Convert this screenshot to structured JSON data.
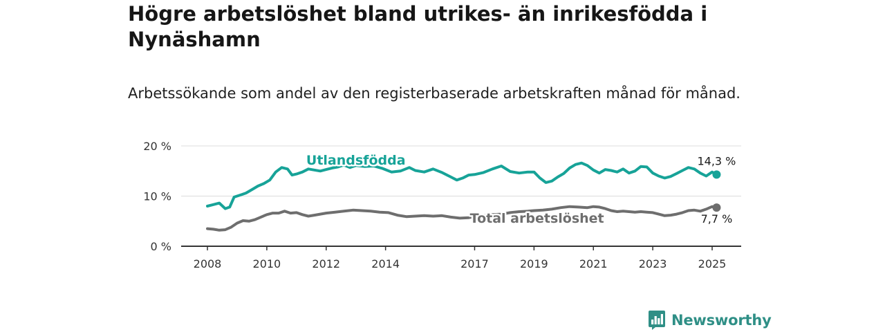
{
  "header": {
    "title": "Högre arbetslöshet bland utrikes- än inrikesfödda i Nynäshamn",
    "subtitle": "Arbetssökande som andel av den registerbaserade arbetskraften månad för månad."
  },
  "brand": {
    "name": "Newsworthy",
    "color": "#2f8f86"
  },
  "chart_data": {
    "type": "line",
    "title": "Högre arbetslöshet bland utrikes- än inrikesfödda i Nynäshamn",
    "subtitle": "Arbetssökande som andel av den registerbaserade arbetskraften månad för månad.",
    "xlim": [
      2008,
      2025.5
    ],
    "ylim": [
      0,
      20
    ],
    "y_ticks": [
      0,
      10,
      20
    ],
    "y_tick_labels": [
      "0 %",
      "10 %",
      "20 %"
    ],
    "x_ticks": [
      2008,
      2010,
      2012,
      2014,
      2017,
      2019,
      2021,
      2023,
      2025
    ],
    "x_tick_labels": [
      "2008",
      "2010",
      "2012",
      "2014",
      "2017",
      "2019",
      "2021",
      "2023",
      "2025"
    ],
    "grid": "horizontal",
    "series": [
      {
        "name": "Utlandsfödda",
        "color": "#17a398",
        "end_label": "14,3 %",
        "x": [
          2008.0,
          2008.2,
          2008.4,
          2008.6,
          2008.75,
          2008.9,
          2009.1,
          2009.3,
          2009.5,
          2009.7,
          2009.9,
          2010.1,
          2010.3,
          2010.5,
          2010.7,
          2010.85,
          2011.0,
          2011.2,
          2011.4,
          2011.6,
          2011.8,
          2012.0,
          2012.2,
          2012.4,
          2012.6,
          2012.8,
          2013.0,
          2013.3,
          2013.6,
          2013.9,
          2014.2,
          2014.5,
          2014.8,
          2015.0,
          2015.3,
          2015.6,
          2015.9,
          2016.2,
          2016.4,
          2016.6,
          2016.8,
          2017.0,
          2017.3,
          2017.6,
          2017.9,
          2018.2,
          2018.5,
          2018.8,
          2019.0,
          2019.2,
          2019.4,
          2019.6,
          2019.8,
          2020.0,
          2020.2,
          2020.4,
          2020.6,
          2020.8,
          2021.0,
          2021.2,
          2021.4,
          2021.6,
          2021.8,
          2022.0,
          2022.2,
          2022.4,
          2022.6,
          2022.8,
          2023.0,
          2023.2,
          2023.4,
          2023.6,
          2023.8,
          2024.0,
          2024.2,
          2024.4,
          2024.6,
          2024.8,
          2025.0,
          2025.15
        ],
        "values": [
          8.0,
          8.3,
          8.6,
          7.5,
          7.8,
          9.8,
          10.2,
          10.6,
          11.3,
          12.0,
          12.5,
          13.2,
          14.8,
          15.7,
          15.4,
          14.2,
          14.4,
          14.8,
          15.4,
          15.2,
          15.0,
          15.3,
          15.6,
          15.8,
          16.2,
          15.7,
          16.1,
          15.9,
          16.0,
          15.5,
          14.8,
          15.0,
          15.7,
          15.1,
          14.8,
          15.4,
          14.7,
          13.8,
          13.2,
          13.6,
          14.2,
          14.3,
          14.7,
          15.4,
          16.0,
          14.9,
          14.6,
          14.8,
          14.8,
          13.6,
          12.7,
          13.0,
          13.8,
          14.5,
          15.6,
          16.3,
          16.6,
          16.1,
          15.2,
          14.6,
          15.3,
          15.1,
          14.8,
          15.4,
          14.6,
          15.0,
          15.9,
          15.8,
          14.6,
          14.0,
          13.6,
          13.9,
          14.5,
          15.1,
          15.7,
          15.4,
          14.6,
          14.0,
          14.8,
          14.3
        ]
      },
      {
        "name": "Total arbetslöshet",
        "color": "#6e6e6e",
        "end_label": "7,7 %",
        "x": [
          2008.0,
          2008.2,
          2008.4,
          2008.6,
          2008.8,
          2009.0,
          2009.2,
          2009.4,
          2009.6,
          2009.8,
          2010.0,
          2010.2,
          2010.4,
          2010.6,
          2010.8,
          2011.0,
          2011.2,
          2011.4,
          2011.6,
          2011.8,
          2012.0,
          2012.3,
          2012.6,
          2012.9,
          2013.2,
          2013.5,
          2013.8,
          2014.1,
          2014.4,
          2014.7,
          2015.0,
          2015.3,
          2015.6,
          2015.9,
          2016.2,
          2016.5,
          2016.8,
          2017.0,
          2017.3,
          2017.6,
          2017.9,
          2018.2,
          2018.5,
          2018.8,
          2019.0,
          2019.3,
          2019.6,
          2019.9,
          2020.2,
          2020.5,
          2020.8,
          2021.0,
          2021.2,
          2021.4,
          2021.6,
          2021.8,
          2022.0,
          2022.2,
          2022.4,
          2022.6,
          2022.8,
          2023.0,
          2023.2,
          2023.4,
          2023.6,
          2023.8,
          2024.0,
          2024.2,
          2024.4,
          2024.6,
          2024.8,
          2025.0,
          2025.15
        ],
        "values": [
          3.5,
          3.4,
          3.2,
          3.3,
          3.8,
          4.6,
          5.1,
          5.0,
          5.3,
          5.8,
          6.3,
          6.6,
          6.6,
          7.0,
          6.6,
          6.7,
          6.3,
          6.0,
          6.2,
          6.4,
          6.6,
          6.8,
          7.0,
          7.2,
          7.1,
          7.0,
          6.8,
          6.7,
          6.2,
          5.9,
          6.0,
          6.1,
          6.0,
          6.1,
          5.8,
          5.6,
          5.7,
          5.9,
          6.1,
          6.3,
          6.4,
          6.7,
          6.9,
          7.0,
          7.1,
          7.2,
          7.4,
          7.7,
          7.9,
          7.8,
          7.7,
          7.9,
          7.8,
          7.5,
          7.1,
          6.9,
          7.0,
          6.9,
          6.8,
          6.9,
          6.8,
          6.7,
          6.4,
          6.1,
          6.2,
          6.4,
          6.7,
          7.1,
          7.2,
          7.0,
          7.4,
          7.9,
          7.7
        ]
      }
    ],
    "annotations": [
      {
        "text": "Utlandsfödda",
        "series": "Utlandsfödda",
        "x": 2013.0,
        "y": 17.1
      },
      {
        "text": "Total arbetslöshet",
        "series": "Total arbetslöshet",
        "x": 2019.1,
        "y": 5.5
      }
    ]
  }
}
